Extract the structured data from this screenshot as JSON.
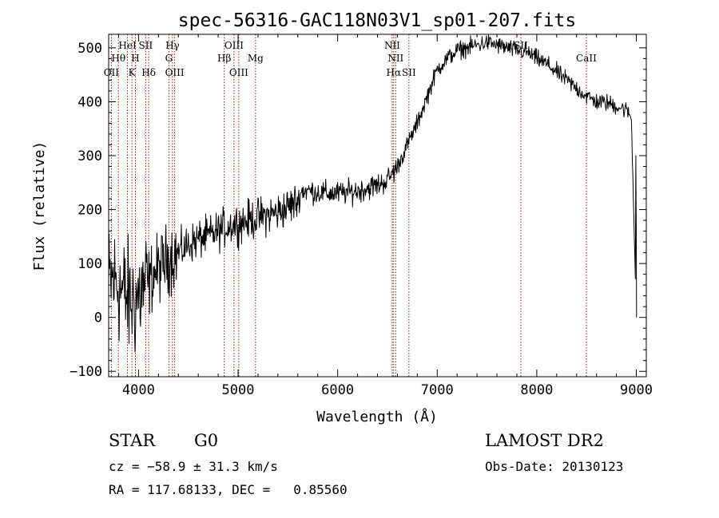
{
  "chart_data": {
    "type": "line",
    "title": "spec-56316-GAC118N03V1_sp01-207.fits",
    "xlabel": "Wavelength (Å)",
    "ylabel": "Flux (relative)",
    "xlim": [
      3700,
      9100
    ],
    "ylim": [
      -110,
      525
    ],
    "xticks": [
      4000,
      5000,
      6000,
      7000,
      8000,
      9000
    ],
    "yticks": [
      -100,
      0,
      100,
      200,
      300,
      400,
      500
    ],
    "grid": false,
    "legend": "none",
    "line_color": "#000000",
    "marker_color": "#8b1a1a",
    "spectrum": {
      "x": [
        3700,
        3750,
        3800,
        3850,
        3900,
        3950,
        4000,
        4050,
        4100,
        4150,
        4200,
        4300,
        4400,
        4500,
        4600,
        4700,
        4800,
        4900,
        5000,
        5100,
        5200,
        5300,
        5400,
        5500,
        5600,
        5640,
        5700,
        5800,
        5900,
        6000,
        6100,
        6200,
        6300,
        6400,
        6500,
        6560,
        6600,
        6650,
        6700,
        6750,
        6800,
        6900,
        7000,
        7100,
        7200,
        7300,
        7400,
        7500,
        7600,
        7700,
        7800,
        7900,
        8000,
        8100,
        8200,
        8300,
        8400,
        8500,
        8600,
        8700,
        8800,
        8900,
        8950,
        9000
      ],
      "y": [
        60,
        70,
        60,
        45,
        30,
        30,
        40,
        55,
        65,
        80,
        90,
        110,
        120,
        135,
        145,
        150,
        160,
        170,
        175,
        180,
        185,
        190,
        195,
        205,
        215,
        235,
        235,
        232,
        230,
        230,
        232,
        235,
        240,
        245,
        255,
        270,
        280,
        300,
        320,
        340,
        360,
        410,
        460,
        480,
        495,
        500,
        505,
        510,
        505,
        500,
        495,
        492,
        480,
        470,
        455,
        440,
        425,
        410,
        400,
        398,
        392,
        385,
        370,
        0
      ]
    },
    "lines": [
      {
        "name": "OII",
        "x": 3727,
        "row": 3
      },
      {
        "name": "Hθ",
        "x": 3798,
        "row": 2
      },
      {
        "name": "HeI",
        "x": 3889,
        "row": 1
      },
      {
        "name": "K",
        "x": 3934,
        "row": 3
      },
      {
        "name": "H",
        "x": 3969,
        "row": 2
      },
      {
        "name": "SII",
        "x": 4072,
        "row": 1
      },
      {
        "name": "Hδ",
        "x": 4102,
        "row": 3
      },
      {
        "name": "G",
        "x": 4305,
        "row": 2
      },
      {
        "name": "Hγ",
        "x": 4341,
        "row": 1
      },
      {
        "name": "OIII",
        "x": 4363,
        "row": 3
      },
      {
        "name": "Hβ",
        "x": 4861,
        "row": 2
      },
      {
        "name": "OIII",
        "x": 4959,
        "row": 1
      },
      {
        "name": "OIII",
        "x": 5007,
        "row": 3
      },
      {
        "name": "Mg",
        "x": 5175,
        "row": 2
      },
      {
        "name": "NII",
        "x": 6548,
        "row": 1
      },
      {
        "name": "Hα",
        "x": 6563,
        "row": 3
      },
      {
        "name": "NII",
        "x": 6583,
        "row": 2
      },
      {
        "name": "SII",
        "x": 6716,
        "row": 3
      },
      {
        "name": "SII",
        "x": 7840,
        "row": 1
      },
      {
        "name": "CaII",
        "x": 8498,
        "row": 2
      }
    ]
  },
  "info": {
    "class": "STAR",
    "subclass": "G0",
    "survey": "LAMOST DR2",
    "redshift": "cz = −58.9 ± 31.3 km/s",
    "obs_date": "Obs-Date: 20130123",
    "coords": "RA = 117.68133, DEC =   0.85560"
  }
}
